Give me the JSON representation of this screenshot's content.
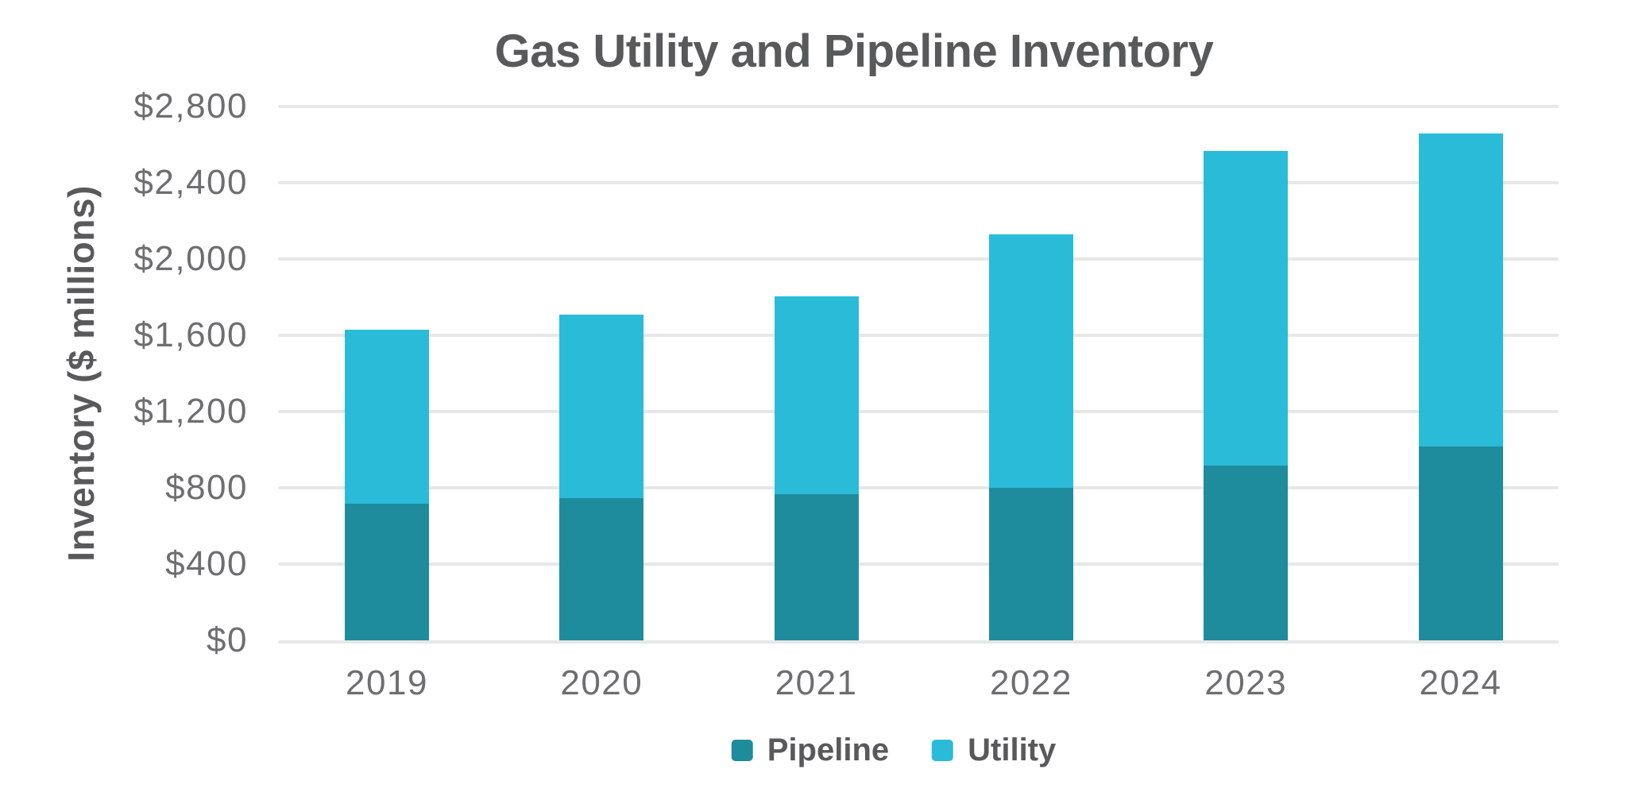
{
  "chart_data": {
    "type": "bar",
    "stacked": true,
    "title": "Gas Utility and Pipeline Inventory",
    "ylabel": "Inventory ($ millions)",
    "categories": [
      "2019",
      "2020",
      "2021",
      "2022",
      "2023",
      "2024"
    ],
    "series": [
      {
        "name": "Pipeline",
        "color": "#1E8C9D",
        "values": [
          715,
          745,
          765,
          800,
          915,
          1015
        ]
      },
      {
        "name": "Utility",
        "color": "#2ABBD9",
        "values": [
          915,
          965,
          1040,
          1330,
          1650,
          1645
        ]
      }
    ],
    "ylim": [
      0,
      2800
    ],
    "y_tick_interval": 400,
    "y_tick_labels": [
      "$0",
      "$400",
      "$800",
      "$1,200",
      "$1,600",
      "$2,000",
      "$2,400",
      "$2,800"
    ],
    "grid": "horizontal",
    "legend_position": "bottom"
  },
  "styles": {
    "title_color": "#58595B",
    "label_color": "#6D6E71",
    "grid_color": "#E6E7E8",
    "background": "#FFFFFF"
  }
}
